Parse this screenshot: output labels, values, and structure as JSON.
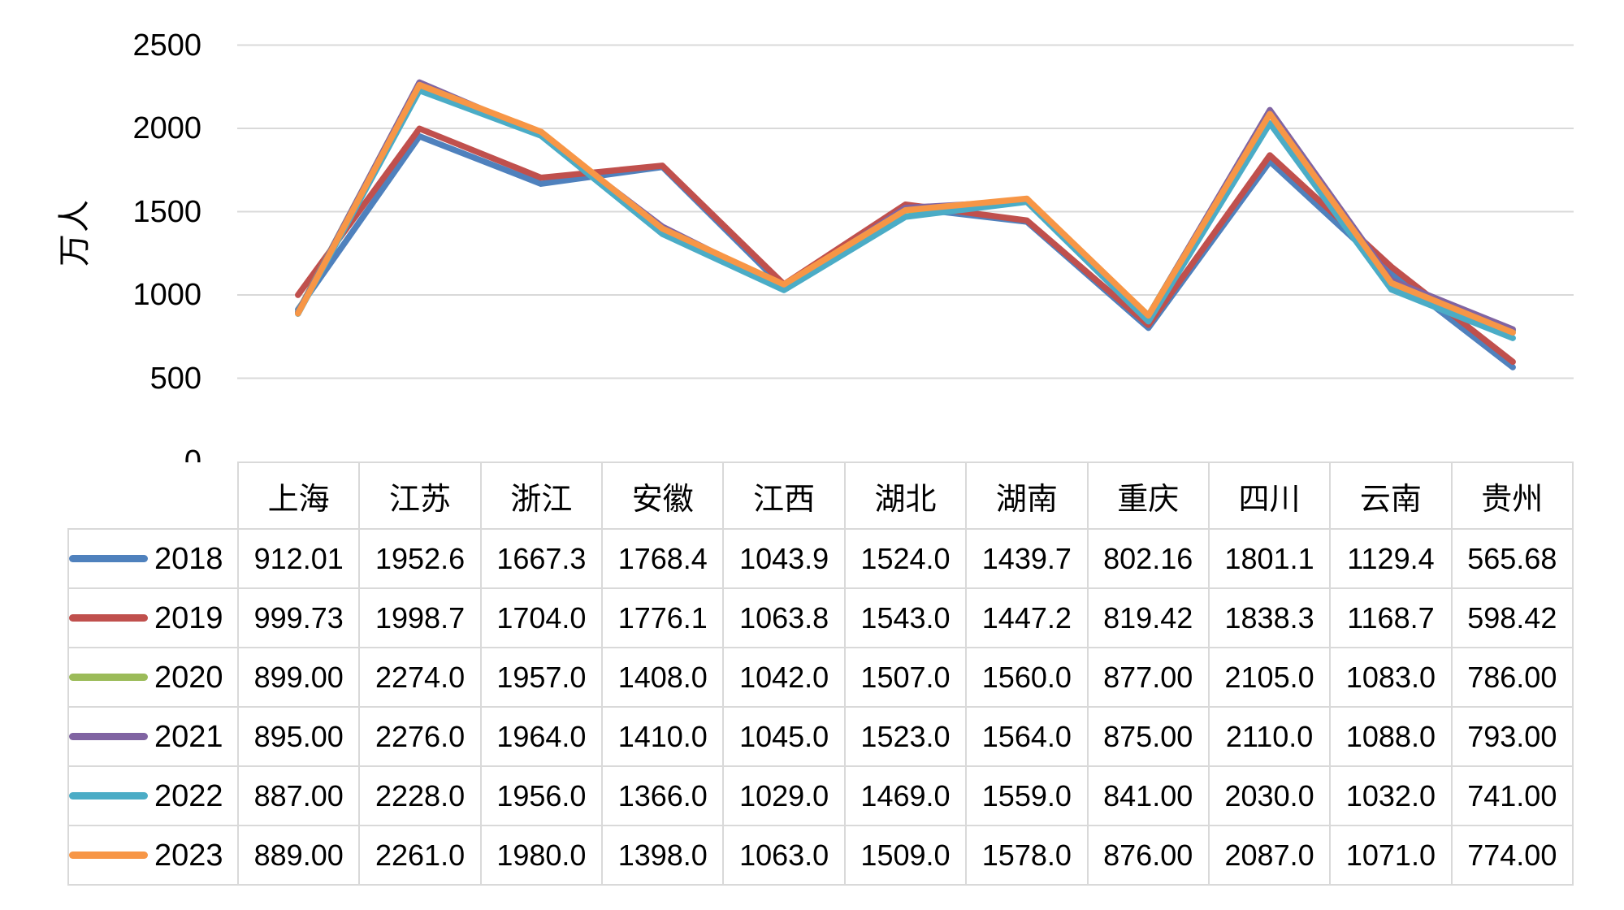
{
  "chart_data": {
    "type": "line",
    "title": "",
    "xlabel": "",
    "ylabel": "万人",
    "ylim": [
      0,
      2500
    ],
    "ytick_interval": 500,
    "yticks": [
      "0",
      "500",
      "1000",
      "1500",
      "2000",
      "2500"
    ],
    "grid": true,
    "legend_position": "data-table-left-keys",
    "categories": [
      "上海",
      "江苏",
      "浙江",
      "安徽",
      "江西",
      "湖北",
      "湖南",
      "重庆",
      "四川",
      "云南",
      "贵州"
    ],
    "series": [
      {
        "name": "2018",
        "color": "#4F81BD",
        "values": [
          912.01,
          1952.6,
          1667.3,
          1768.4,
          1043.9,
          1524.0,
          1439.7,
          802.16,
          1801.1,
          1129.4,
          565.68
        ],
        "display": [
          "912.01",
          "1952.6",
          "1667.3",
          "1768.4",
          "1043.9",
          "1524.0",
          "1439.7",
          "802.16",
          "1801.1",
          "1129.4",
          "565.68"
        ]
      },
      {
        "name": "2019",
        "color": "#C0504D",
        "values": [
          999.73,
          1998.7,
          1704.0,
          1776.1,
          1063.8,
          1543.0,
          1447.2,
          819.42,
          1838.3,
          1168.7,
          598.42
        ],
        "display": [
          "999.73",
          "1998.7",
          "1704.0",
          "1776.1",
          "1063.8",
          "1543.0",
          "1447.2",
          "819.42",
          "1838.3",
          "1168.7",
          "598.42"
        ]
      },
      {
        "name": "2020",
        "color": "#9BBB59",
        "values": [
          899.0,
          2274.0,
          1957.0,
          1408.0,
          1042.0,
          1507.0,
          1560.0,
          877.0,
          2105.0,
          1083.0,
          786.0
        ],
        "display": [
          "899.00",
          "2274.0",
          "1957.0",
          "1408.0",
          "1042.0",
          "1507.0",
          "1560.0",
          "877.00",
          "2105.0",
          "1083.0",
          "786.00"
        ]
      },
      {
        "name": "2021",
        "color": "#8064A2",
        "values": [
          895.0,
          2276.0,
          1964.0,
          1410.0,
          1045.0,
          1523.0,
          1564.0,
          875.0,
          2110.0,
          1088.0,
          793.0
        ],
        "display": [
          "895.00",
          "2276.0",
          "1964.0",
          "1410.0",
          "1045.0",
          "1523.0",
          "1564.0",
          "875.00",
          "2110.0",
          "1088.0",
          "793.00"
        ]
      },
      {
        "name": "2022",
        "color": "#4BACC6",
        "values": [
          887.0,
          2228.0,
          1956.0,
          1366.0,
          1029.0,
          1469.0,
          1559.0,
          841.0,
          2030.0,
          1032.0,
          741.0
        ],
        "display": [
          "887.00",
          "2228.0",
          "1956.0",
          "1366.0",
          "1029.0",
          "1469.0",
          "1559.0",
          "841.00",
          "2030.0",
          "1032.0",
          "741.00"
        ]
      },
      {
        "name": "2023",
        "color": "#F79646",
        "values": [
          889.0,
          2261.0,
          1980.0,
          1398.0,
          1063.0,
          1509.0,
          1578.0,
          876.0,
          2087.0,
          1071.0,
          774.0
        ],
        "display": [
          "889.00",
          "2261.0",
          "1980.0",
          "1398.0",
          "1063.0",
          "1509.0",
          "1578.0",
          "876.00",
          "2087.0",
          "1071.0",
          "774.00"
        ]
      }
    ],
    "colors": {
      "gridline": "#D9D9D9",
      "table_border": "#D9D9D9",
      "text": "#000000"
    }
  }
}
